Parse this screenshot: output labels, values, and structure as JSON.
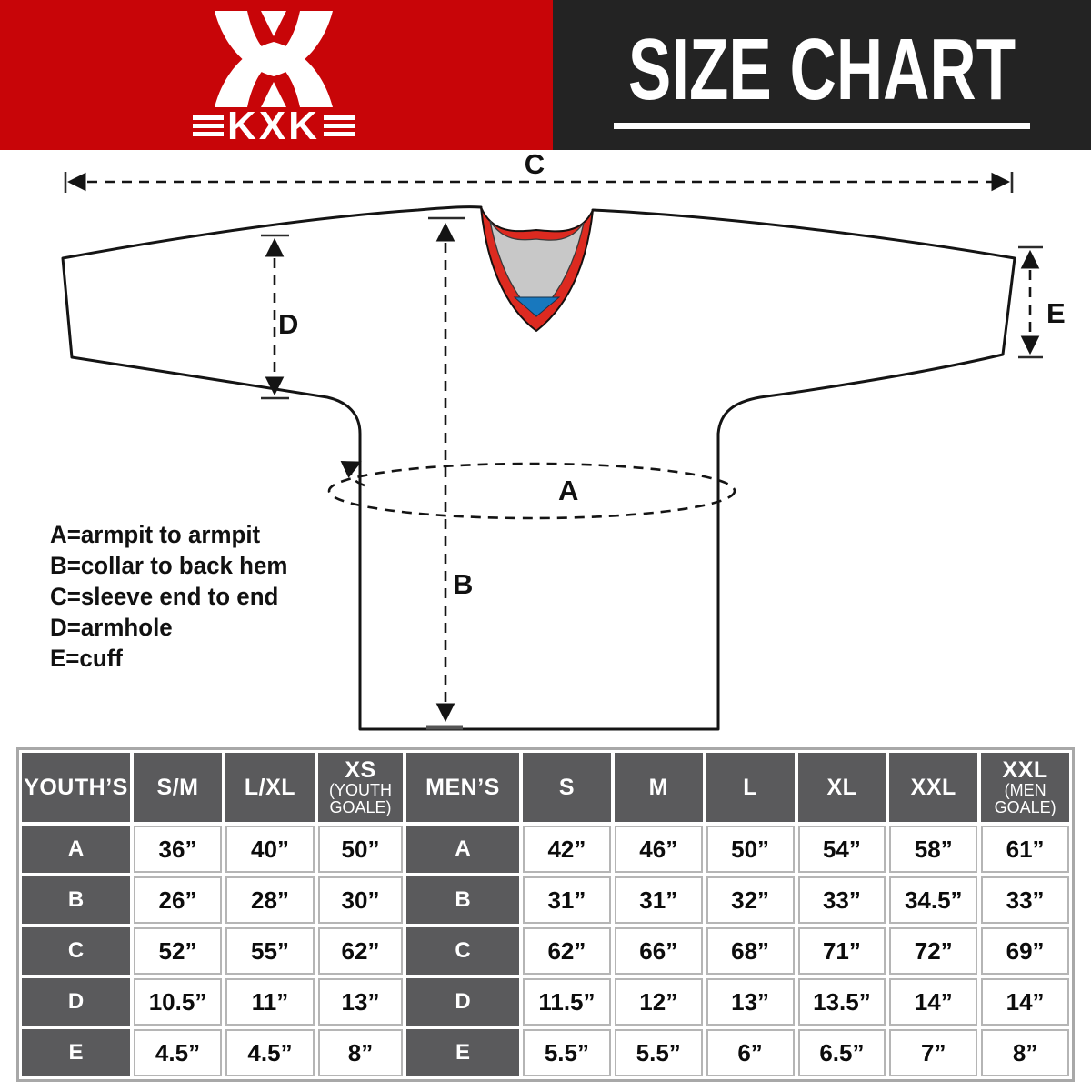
{
  "header": {
    "brand": "KXK",
    "title": "SIZE CHART"
  },
  "diagram": {
    "marks": {
      "a": "A",
      "b": "B",
      "c": "C",
      "d": "D",
      "e": "E"
    },
    "legend": [
      "A=armpit to armpit",
      "B=collar to back hem",
      "C=sleeve end to end",
      "D=armhole",
      "E=cuff"
    ]
  },
  "table": {
    "row_labels": [
      "A",
      "B",
      "C",
      "D",
      "E"
    ],
    "youth": {
      "title": "YOUTH’S",
      "columns": [
        {
          "label": "S/M",
          "sub": ""
        },
        {
          "label": "L/XL",
          "sub": ""
        },
        {
          "label": "XS",
          "sub": "(YOUTH GOALE)"
        }
      ],
      "rows": [
        [
          "36”",
          "40”",
          "50”"
        ],
        [
          "26”",
          "28”",
          "30”"
        ],
        [
          "52”",
          "55”",
          "62”"
        ],
        [
          "10.5”",
          "11”",
          "13”"
        ],
        [
          "4.5”",
          "4.5”",
          "8”"
        ]
      ]
    },
    "men": {
      "title": "MEN’S",
      "columns": [
        {
          "label": "S",
          "sub": ""
        },
        {
          "label": "M",
          "sub": ""
        },
        {
          "label": "L",
          "sub": ""
        },
        {
          "label": "XL",
          "sub": ""
        },
        {
          "label": "XXL",
          "sub": ""
        },
        {
          "label": "XXL",
          "sub": "(MEN GOALE)"
        }
      ],
      "rows": [
        [
          "42”",
          "46”",
          "50”",
          "54”",
          "58”",
          "61”"
        ],
        [
          "31”",
          "31”",
          "32”",
          "33”",
          "34.5”",
          "33”"
        ],
        [
          "62”",
          "66”",
          "68”",
          "71”",
          "72”",
          "69”"
        ],
        [
          "11.5”",
          "12”",
          "13”",
          "13.5”",
          "14”",
          "14”"
        ],
        [
          "5.5”",
          "5.5”",
          "6”",
          "6.5”",
          "7”",
          "8”"
        ]
      ]
    }
  },
  "colors": {
    "brand_red": "#C80508",
    "panel_black": "#232323",
    "collar_red": "#DC2A20",
    "collar_gray": "#C8C8C8",
    "collar_blue": "#1878BE",
    "table_header_gray": "#5A5A5C"
  }
}
